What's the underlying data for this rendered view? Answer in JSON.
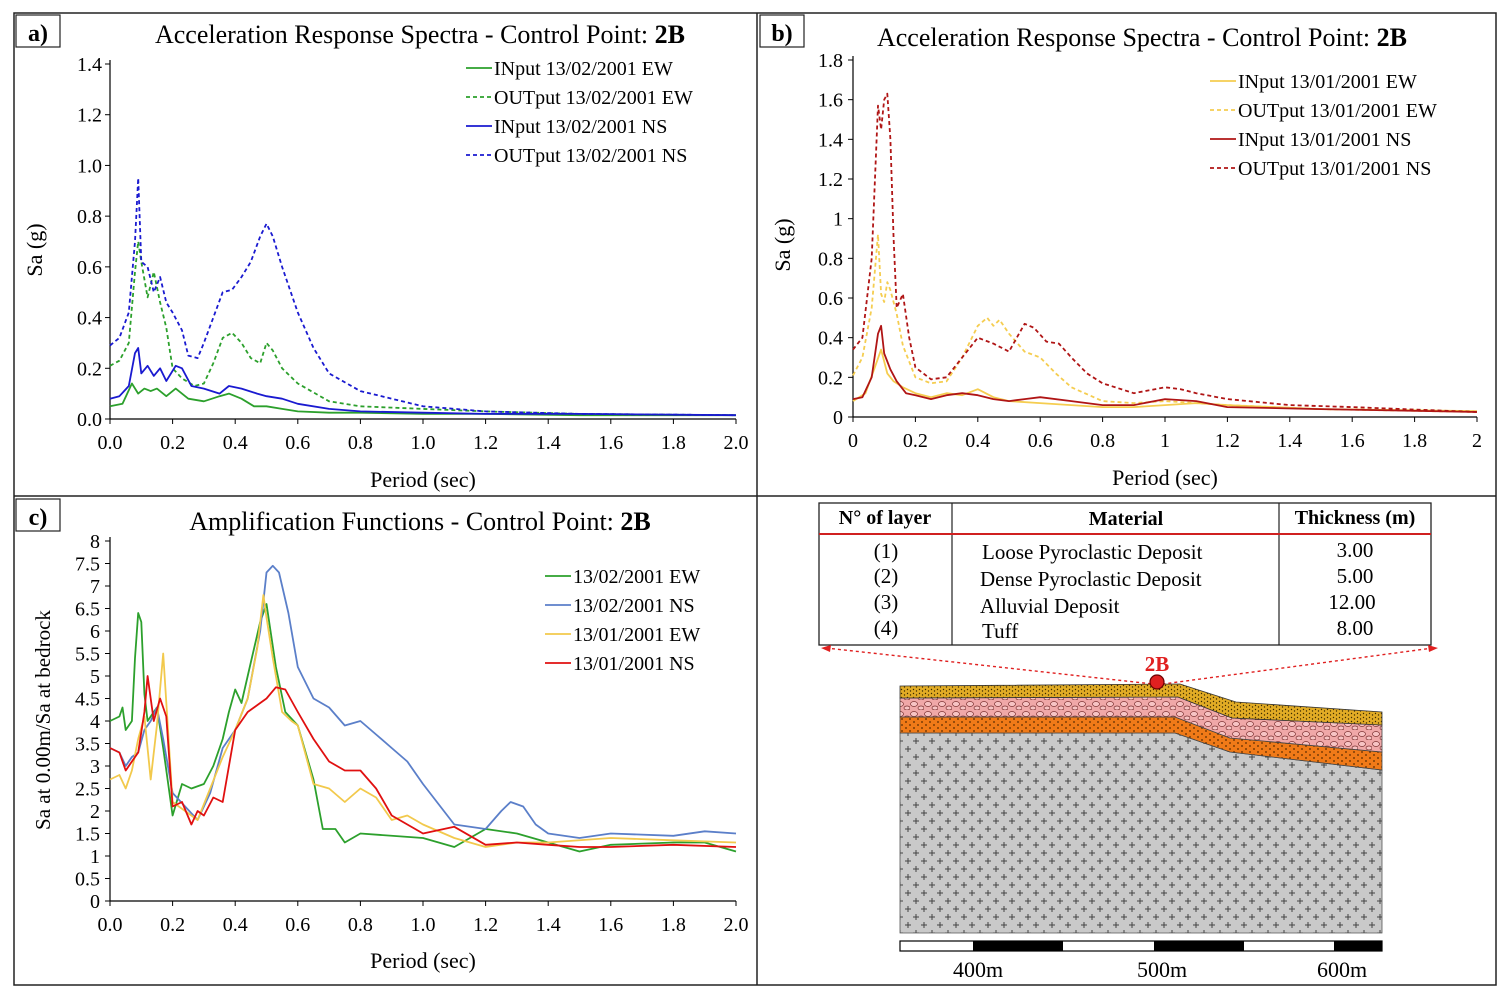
{
  "colors": {
    "green": "#2ca02c",
    "blue": "#1a1ad0",
    "yellow": "#f5cd50",
    "red": "#b01515",
    "blue_light": "#5b7fc9",
    "red_bright": "#e01010",
    "yellow_bright": "#f2c94c",
    "tuff": "#c8c8c8",
    "orange": "#f07a18",
    "pink": "#f2a0a0",
    "gold": "#e8b020",
    "marker": "#e02020"
  },
  "chart_data": [
    {
      "id": "a",
      "panel_label": "a)",
      "type": "line",
      "title": "Acceleration Response Spectra - Control Point: ",
      "title_bold": "2B",
      "xlabel": "Period (sec)",
      "ylabel": "Sa (g)",
      "xlim": [
        0,
        2
      ],
      "ylim": [
        0,
        1.4
      ],
      "xticks": [
        "0.0",
        "0.2",
        "0.4",
        "0.6",
        "0.8",
        "1.0",
        "1.2",
        "1.4",
        "1.6",
        "1.8",
        "2.0"
      ],
      "yticks": [
        "0.0",
        "0.2",
        "0.4",
        "0.6",
        "0.8",
        "1.0",
        "1.2",
        "1.4"
      ],
      "legend": "top-right",
      "series": [
        {
          "name": "INput 13/02/2001 EW",
          "color": "green",
          "dash": false,
          "x": [
            0,
            0.04,
            0.07,
            0.09,
            0.11,
            0.13,
            0.15,
            0.18,
            0.21,
            0.25,
            0.3,
            0.35,
            0.38,
            0.42,
            0.46,
            0.5,
            0.55,
            0.6,
            0.7,
            0.8,
            1.0,
            1.2,
            1.5,
            2.0
          ],
          "y": [
            0.05,
            0.06,
            0.14,
            0.1,
            0.12,
            0.11,
            0.12,
            0.09,
            0.12,
            0.08,
            0.07,
            0.09,
            0.1,
            0.08,
            0.05,
            0.05,
            0.04,
            0.03,
            0.025,
            0.025,
            0.02,
            0.02,
            0.015,
            0.015
          ]
        },
        {
          "name": "OUTput 13/02/2001 EW",
          "color": "green",
          "dash": true,
          "x": [
            0,
            0.03,
            0.06,
            0.08,
            0.09,
            0.1,
            0.12,
            0.14,
            0.16,
            0.18,
            0.2,
            0.23,
            0.27,
            0.3,
            0.33,
            0.36,
            0.39,
            0.42,
            0.45,
            0.48,
            0.5,
            0.52,
            0.55,
            0.6,
            0.7,
            0.8,
            1.0,
            1.2,
            1.5,
            2.0
          ],
          "y": [
            0.21,
            0.23,
            0.3,
            0.58,
            0.7,
            0.62,
            0.48,
            0.58,
            0.46,
            0.36,
            0.2,
            0.16,
            0.13,
            0.14,
            0.22,
            0.32,
            0.34,
            0.3,
            0.24,
            0.22,
            0.3,
            0.27,
            0.2,
            0.14,
            0.07,
            0.05,
            0.04,
            0.03,
            0.02,
            0.015
          ]
        },
        {
          "name": "INput 13/02/2001 NS",
          "color": "blue",
          "dash": false,
          "x": [
            0,
            0.03,
            0.06,
            0.08,
            0.09,
            0.1,
            0.12,
            0.14,
            0.16,
            0.18,
            0.21,
            0.23,
            0.26,
            0.3,
            0.35,
            0.38,
            0.42,
            0.47,
            0.5,
            0.55,
            0.6,
            0.7,
            0.8,
            1.0,
            1.2,
            1.5,
            2.0
          ],
          "y": [
            0.08,
            0.09,
            0.13,
            0.26,
            0.28,
            0.18,
            0.21,
            0.17,
            0.2,
            0.15,
            0.21,
            0.2,
            0.13,
            0.12,
            0.1,
            0.13,
            0.12,
            0.1,
            0.09,
            0.08,
            0.06,
            0.04,
            0.03,
            0.025,
            0.02,
            0.02,
            0.015
          ]
        },
        {
          "name": "OUTput 13/02/2001 NS",
          "color": "blue",
          "dash": true,
          "x": [
            0,
            0.03,
            0.06,
            0.08,
            0.09,
            0.1,
            0.12,
            0.14,
            0.16,
            0.18,
            0.2,
            0.23,
            0.25,
            0.28,
            0.3,
            0.33,
            0.36,
            0.39,
            0.42,
            0.45,
            0.48,
            0.5,
            0.52,
            0.55,
            0.6,
            0.65,
            0.7,
            0.8,
            1.0,
            1.2,
            1.5,
            2.0
          ],
          "y": [
            0.29,
            0.32,
            0.42,
            0.7,
            0.95,
            0.62,
            0.6,
            0.5,
            0.56,
            0.46,
            0.42,
            0.35,
            0.25,
            0.24,
            0.3,
            0.4,
            0.5,
            0.51,
            0.56,
            0.62,
            0.72,
            0.77,
            0.72,
            0.6,
            0.42,
            0.28,
            0.18,
            0.11,
            0.05,
            0.03,
            0.02,
            0.015
          ]
        }
      ]
    },
    {
      "id": "b",
      "panel_label": "b)",
      "type": "line",
      "title": "Acceleration Response Spectra - Control Point: ",
      "title_bold": "2B",
      "xlabel": "Period (sec)",
      "ylabel": "Sa (g)",
      "xlim": [
        0,
        2
      ],
      "ylim": [
        0,
        1.8
      ],
      "xticks": [
        "0",
        "0.2",
        "0.4",
        "0.6",
        "0.8",
        "1",
        "1.2",
        "1.4",
        "1.6",
        "1.8",
        "2"
      ],
      "yticks": [
        "0",
        "0.2",
        "0.4",
        "0.6",
        "0.8",
        "1",
        "1.2",
        "1.4",
        "1.6",
        "1.8"
      ],
      "legend": "top-right",
      "series": [
        {
          "name": "INput 13/01/2001 EW",
          "color": "yellow",
          "dash": false,
          "x": [
            0,
            0.04,
            0.07,
            0.09,
            0.11,
            0.13,
            0.16,
            0.2,
            0.25,
            0.3,
            0.35,
            0.4,
            0.45,
            0.5,
            0.6,
            0.7,
            0.8,
            0.9,
            1.0,
            1.1,
            1.2,
            1.5,
            2.0
          ],
          "y": [
            0.08,
            0.12,
            0.25,
            0.34,
            0.22,
            0.18,
            0.15,
            0.12,
            0.1,
            0.12,
            0.11,
            0.14,
            0.1,
            0.08,
            0.07,
            0.06,
            0.05,
            0.05,
            0.06,
            0.07,
            0.06,
            0.04,
            0.03
          ]
        },
        {
          "name": "OUTput 13/01/2001 EW",
          "color": "yellow",
          "dash": true,
          "x": [
            0,
            0.03,
            0.06,
            0.08,
            0.09,
            0.1,
            0.11,
            0.12,
            0.14,
            0.16,
            0.2,
            0.25,
            0.3,
            0.35,
            0.4,
            0.43,
            0.45,
            0.47,
            0.5,
            0.55,
            0.6,
            0.65,
            0.7,
            0.8,
            0.9,
            1.0,
            1.1,
            1.2,
            1.5,
            2.0
          ],
          "y": [
            0.21,
            0.3,
            0.55,
            0.92,
            0.62,
            0.58,
            0.68,
            0.64,
            0.52,
            0.36,
            0.2,
            0.17,
            0.18,
            0.3,
            0.46,
            0.5,
            0.46,
            0.49,
            0.42,
            0.33,
            0.3,
            0.22,
            0.15,
            0.08,
            0.07,
            0.08,
            0.07,
            0.06,
            0.04,
            0.025
          ]
        },
        {
          "name": "INput 13/01/2001 NS",
          "color": "red",
          "dash": false,
          "x": [
            0,
            0.03,
            0.06,
            0.08,
            0.09,
            0.1,
            0.12,
            0.14,
            0.17,
            0.2,
            0.25,
            0.3,
            0.35,
            0.4,
            0.45,
            0.5,
            0.55,
            0.6,
            0.7,
            0.8,
            0.9,
            1.0,
            1.1,
            1.2,
            1.5,
            2.0
          ],
          "y": [
            0.09,
            0.1,
            0.2,
            0.42,
            0.46,
            0.32,
            0.24,
            0.18,
            0.12,
            0.11,
            0.09,
            0.11,
            0.12,
            0.11,
            0.09,
            0.08,
            0.09,
            0.1,
            0.08,
            0.06,
            0.06,
            0.09,
            0.08,
            0.05,
            0.04,
            0.025
          ]
        },
        {
          "name": "OUTput 13/01/2001 NS",
          "color": "red",
          "dash": true,
          "x": [
            0,
            0.03,
            0.06,
            0.08,
            0.09,
            0.1,
            0.11,
            0.12,
            0.13,
            0.14,
            0.16,
            0.18,
            0.2,
            0.25,
            0.3,
            0.35,
            0.4,
            0.45,
            0.5,
            0.55,
            0.58,
            0.62,
            0.66,
            0.7,
            0.75,
            0.8,
            0.9,
            1.0,
            1.05,
            1.1,
            1.2,
            1.4,
            1.6,
            2.0
          ],
          "y": [
            0.34,
            0.4,
            0.8,
            1.57,
            1.45,
            1.6,
            1.63,
            1.4,
            0.9,
            0.55,
            0.62,
            0.4,
            0.25,
            0.19,
            0.2,
            0.3,
            0.4,
            0.37,
            0.33,
            0.47,
            0.45,
            0.38,
            0.37,
            0.3,
            0.22,
            0.17,
            0.12,
            0.15,
            0.14,
            0.12,
            0.09,
            0.06,
            0.05,
            0.025
          ]
        }
      ]
    },
    {
      "id": "c",
      "panel_label": "c)",
      "type": "line",
      "title": "Amplification Functions - Control Point: ",
      "title_bold": "2B",
      "xlabel": "Period (sec)",
      "ylabel": "Sa at 0.00m/Sa at bedrock",
      "xlim": [
        0,
        2
      ],
      "ylim": [
        0,
        8
      ],
      "xticks": [
        "0.0",
        "0.2",
        "0.4",
        "0.6",
        "0.8",
        "1.0",
        "1.2",
        "1.4",
        "1.6",
        "1.8",
        "2.0"
      ],
      "yticks": [
        "0",
        "0.5",
        "1",
        "1.5",
        "2",
        "2.5",
        "3",
        "3.5",
        "4",
        "4.5",
        "5",
        "5.5",
        "6",
        "6.5",
        "7",
        "7.5",
        "8"
      ],
      "legend": "top-right",
      "series": [
        {
          "name": "13/02/2001 EW",
          "color": "green",
          "dash": false,
          "x": [
            0,
            0.03,
            0.04,
            0.05,
            0.06,
            0.07,
            0.08,
            0.09,
            0.1,
            0.11,
            0.12,
            0.15,
            0.17,
            0.2,
            0.23,
            0.26,
            0.3,
            0.33,
            0.36,
            0.38,
            0.4,
            0.42,
            0.45,
            0.48,
            0.5,
            0.53,
            0.56,
            0.6,
            0.65,
            0.68,
            0.72,
            0.75,
            0.8,
            1.0,
            1.1,
            1.2,
            1.3,
            1.4,
            1.45,
            1.5,
            1.6,
            1.8,
            1.9,
            2.0
          ],
          "y": [
            4.0,
            4.1,
            4.3,
            3.8,
            3.9,
            4.0,
            5.4,
            6.4,
            6.2,
            4.6,
            4.0,
            4.3,
            3.4,
            1.9,
            2.6,
            2.5,
            2.6,
            3.0,
            3.6,
            4.2,
            4.7,
            4.4,
            5.3,
            6.2,
            6.6,
            5.2,
            4.2,
            3.9,
            2.7,
            1.6,
            1.6,
            1.3,
            1.5,
            1.4,
            1.2,
            1.6,
            1.5,
            1.3,
            1.2,
            1.1,
            1.25,
            1.3,
            1.3,
            1.1
          ]
        },
        {
          "name": "13/02/2001 NS",
          "color": "blue_light",
          "dash": false,
          "x": [
            0,
            0.03,
            0.05,
            0.07,
            0.09,
            0.11,
            0.13,
            0.15,
            0.17,
            0.2,
            0.24,
            0.28,
            0.32,
            0.36,
            0.4,
            0.44,
            0.48,
            0.5,
            0.52,
            0.54,
            0.57,
            0.6,
            0.65,
            0.7,
            0.75,
            0.8,
            0.85,
            0.9,
            0.95,
            1.0,
            1.1,
            1.2,
            1.25,
            1.28,
            1.32,
            1.36,
            1.4,
            1.5,
            1.6,
            1.8,
            1.9,
            2.0
          ],
          "y": [
            3.4,
            3.3,
            3.0,
            3.2,
            3.3,
            3.8,
            4.0,
            4.3,
            3.6,
            2.4,
            2.1,
            1.8,
            2.4,
            3.4,
            3.8,
            4.5,
            6.0,
            7.3,
            7.45,
            7.3,
            6.4,
            5.2,
            4.5,
            4.3,
            3.9,
            4.0,
            3.7,
            3.4,
            3.1,
            2.6,
            1.7,
            1.6,
            2.0,
            2.2,
            2.1,
            1.7,
            1.5,
            1.4,
            1.5,
            1.45,
            1.55,
            1.5
          ]
        },
        {
          "name": "13/01/2001 EW",
          "color": "yellow_bright",
          "dash": false,
          "x": [
            0,
            0.03,
            0.05,
            0.07,
            0.09,
            0.11,
            0.13,
            0.15,
            0.17,
            0.2,
            0.24,
            0.28,
            0.32,
            0.36,
            0.4,
            0.44,
            0.47,
            0.49,
            0.5,
            0.52,
            0.55,
            0.58,
            0.6,
            0.65,
            0.7,
            0.75,
            0.8,
            0.85,
            0.9,
            0.95,
            1.0,
            1.1,
            1.2,
            1.3,
            1.4,
            1.6,
            1.8,
            2.0
          ],
          "y": [
            2.7,
            2.8,
            2.5,
            2.9,
            3.6,
            4.1,
            2.7,
            3.9,
            5.5,
            2.2,
            2.0,
            1.8,
            2.5,
            3.2,
            3.8,
            4.5,
            5.6,
            6.8,
            6.3,
            5.4,
            4.2,
            4.0,
            3.9,
            2.6,
            2.5,
            2.2,
            2.5,
            2.3,
            1.8,
            1.9,
            1.7,
            1.4,
            1.2,
            1.3,
            1.3,
            1.4,
            1.35,
            1.3
          ]
        },
        {
          "name": "13/01/2001 NS",
          "color": "red_bright",
          "dash": false,
          "x": [
            0,
            0.03,
            0.05,
            0.07,
            0.09,
            0.11,
            0.12,
            0.14,
            0.16,
            0.18,
            0.2,
            0.23,
            0.26,
            0.28,
            0.3,
            0.33,
            0.36,
            0.4,
            0.44,
            0.48,
            0.5,
            0.53,
            0.56,
            0.6,
            0.65,
            0.7,
            0.75,
            0.8,
            0.85,
            0.9,
            1.0,
            1.1,
            1.2,
            1.3,
            1.4,
            1.5,
            1.6,
            1.8,
            2.0
          ],
          "y": [
            3.4,
            3.3,
            2.9,
            3.1,
            3.3,
            4.2,
            5.0,
            4.0,
            4.5,
            4.1,
            2.1,
            2.2,
            1.7,
            2.0,
            1.9,
            2.3,
            2.2,
            3.8,
            4.2,
            4.4,
            4.5,
            4.75,
            4.7,
            4.2,
            3.6,
            3.1,
            2.9,
            2.9,
            2.5,
            1.9,
            1.5,
            1.65,
            1.25,
            1.3,
            1.25,
            1.2,
            1.2,
            1.25,
            1.2
          ]
        }
      ]
    }
  ],
  "panel_d": {
    "table": {
      "headers": [
        "N° of layer",
        "Material",
        "Thickness (m)"
      ],
      "rows": [
        {
          "n": "(1)",
          "material": "Loose Pyroclastic Deposit",
          "thickness": "3.00"
        },
        {
          "n": "(2)",
          "material": "Dense Pyroclastic Deposit",
          "thickness": "5.00"
        },
        {
          "n": "(3)",
          "material": "Alluvial Deposit",
          "thickness": "12.00"
        },
        {
          "n": "(4)",
          "material": "Tuff",
          "thickness": "8.00"
        }
      ]
    },
    "marker_label": "2B",
    "scale_labels": [
      "400m",
      "500m",
      "600m"
    ]
  }
}
